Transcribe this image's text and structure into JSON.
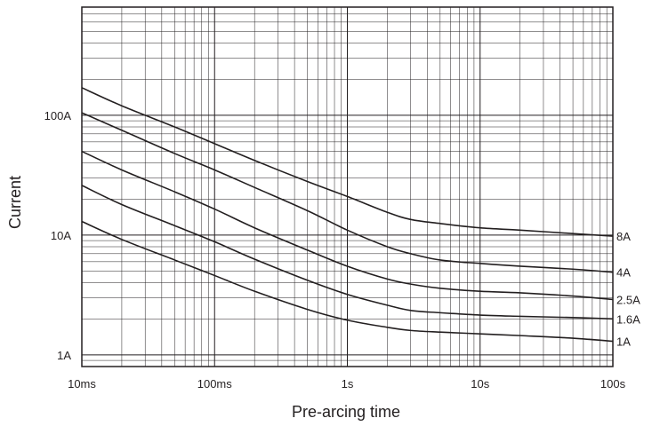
{
  "chart_data": {
    "type": "line",
    "title": "",
    "xlabel": "Pre-arcing time",
    "ylabel": "Current",
    "x_scale": "log",
    "y_scale": "log",
    "xlim": [
      "10ms",
      "100s"
    ],
    "ylim": [
      "0.8A",
      "800A"
    ],
    "grid": true,
    "legend": "none (series labeled at right end of each curve)",
    "x_ticks": [
      {
        "value": "10ms",
        "label": "10ms"
      },
      {
        "value": "100ms",
        "label": "100ms"
      },
      {
        "value": "1s",
        "label": "1s"
      },
      {
        "value": "10s",
        "label": "10s"
      },
      {
        "value": "100s",
        "label": "100s"
      }
    ],
    "y_ticks": [
      {
        "value": "1A",
        "label": "1A"
      },
      {
        "value": "10A",
        "label": "10A"
      },
      {
        "value": "100A",
        "label": "100A"
      }
    ],
    "x_unit": "s",
    "y_unit": "A",
    "series": [
      {
        "name": "8A",
        "x": [
          0.01,
          0.02,
          0.05,
          0.1,
          0.2,
          0.5,
          1,
          2,
          3,
          5,
          10,
          20,
          50,
          100
        ],
        "y": [
          170,
          120,
          80,
          58,
          42,
          28,
          21,
          15.5,
          13.5,
          12.5,
          11.5,
          11,
          10.3,
          9.8
        ]
      },
      {
        "name": "4A",
        "x": [
          0.01,
          0.02,
          0.05,
          0.1,
          0.2,
          0.5,
          1,
          2,
          3,
          5,
          10,
          20,
          50,
          100
        ],
        "y": [
          105,
          75,
          48,
          35,
          25,
          16,
          11,
          8,
          7,
          6.2,
          5.8,
          5.5,
          5.2,
          4.9
        ]
      },
      {
        "name": "2.5A",
        "x": [
          0.01,
          0.02,
          0.05,
          0.1,
          0.2,
          0.5,
          1,
          2,
          3,
          5,
          10,
          20,
          50,
          100
        ],
        "y": [
          50,
          35,
          23,
          16.5,
          11.5,
          7.5,
          5.5,
          4.3,
          3.9,
          3.6,
          3.4,
          3.3,
          3.1,
          2.9
        ]
      },
      {
        "name": "1.6A",
        "x": [
          0.01,
          0.02,
          0.05,
          0.1,
          0.2,
          0.5,
          1,
          2,
          3,
          5,
          10,
          20,
          50,
          100
        ],
        "y": [
          26,
          18,
          12,
          8.8,
          6.3,
          4.2,
          3.2,
          2.6,
          2.35,
          2.25,
          2.15,
          2.1,
          2.05,
          2.0
        ]
      },
      {
        "name": "1A",
        "x": [
          0.01,
          0.02,
          0.05,
          0.1,
          0.2,
          0.5,
          1,
          2,
          3,
          5,
          10,
          20,
          50,
          100
        ],
        "y": [
          13,
          9.2,
          6.2,
          4.6,
          3.4,
          2.4,
          1.95,
          1.7,
          1.6,
          1.55,
          1.5,
          1.45,
          1.38,
          1.3
        ]
      }
    ]
  }
}
